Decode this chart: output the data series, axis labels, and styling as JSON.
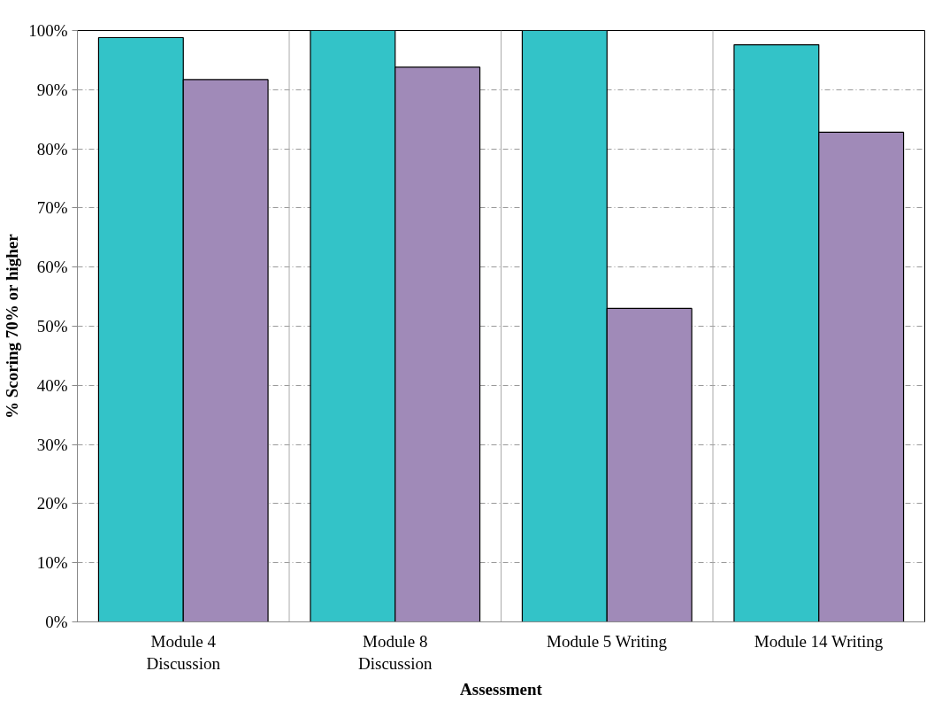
{
  "chart_data": {
    "type": "bar",
    "xlabel": "Assessment",
    "ylabel": "% Scoring 70% or higher",
    "categories": [
      "Module 4\nDiscussion",
      "Module 8\nDiscussion",
      "Module 5 Writing",
      "Module 14 Writing"
    ],
    "series": [
      {
        "color": "#33c3c8",
        "values": [
          98.8,
          100,
          100,
          97.6
        ]
      },
      {
        "color": "#a08ab8",
        "values": [
          91.7,
          93.8,
          53.0,
          82.8
        ]
      }
    ],
    "ylim": [
      0,
      100
    ],
    "yticks": [
      {
        "value": 0,
        "label": "0%"
      },
      {
        "value": 10,
        "label": "10%"
      },
      {
        "value": 20,
        "label": "20%"
      },
      {
        "value": 30,
        "label": "30%"
      },
      {
        "value": 40,
        "label": "40%"
      },
      {
        "value": 50,
        "label": "50%"
      },
      {
        "value": 60,
        "label": "60%"
      },
      {
        "value": 70,
        "label": "70%"
      },
      {
        "value": 80,
        "label": "80%"
      },
      {
        "value": 90,
        "label": "90%"
      },
      {
        "value": 100,
        "label": "100%"
      }
    ],
    "grid": true
  }
}
